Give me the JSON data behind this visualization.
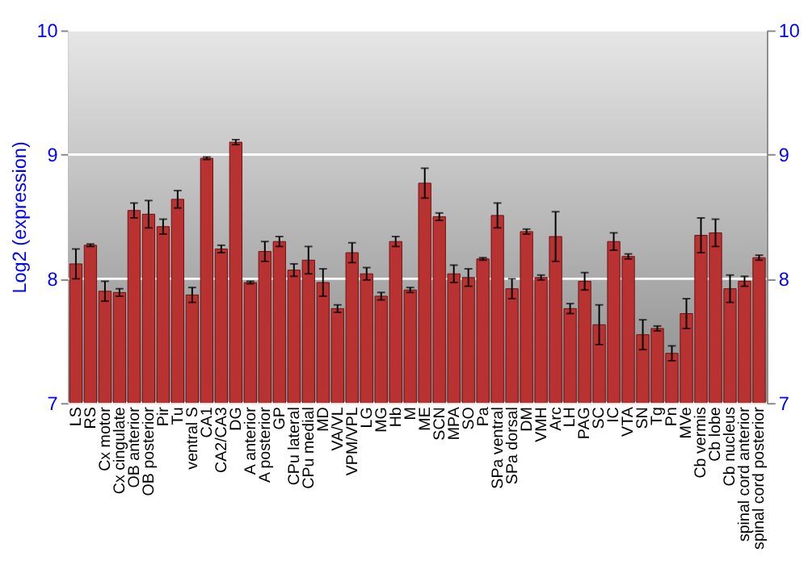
{
  "chart_data": {
    "type": "bar",
    "ylabel": "Log2 (expression)",
    "categories": [
      "LS",
      "RS",
      "Cx motor",
      "Cx cingulate",
      "OB anterior",
      "OB posterior",
      "Pir",
      "Tu",
      "ventral S",
      "CA1",
      "CA2/CA3",
      "DG",
      "A anterior",
      "A posterior",
      "GP",
      "CPu lateral",
      "CPu medial",
      "MD",
      "VA/VL",
      "VPM/VPL",
      "LG",
      "MG",
      "Hb",
      "M",
      "ME",
      "SCN",
      "MPA",
      "SO",
      "Pa",
      "SPa ventral",
      "SPa dorsal",
      "DM",
      "VMH",
      "Arc",
      "LH",
      "PAG",
      "SC",
      "IC",
      "VTA",
      "SN",
      "Tg",
      "Pn",
      "MVe",
      "Cb vermis",
      "Cb lobe",
      "Cb nucleus",
      "spinal cord anterior",
      "spinal cord posterior"
    ],
    "values": [
      8.12,
      8.27,
      7.9,
      7.89,
      8.55,
      8.52,
      8.42,
      8.64,
      7.87,
      8.97,
      8.24,
      9.1,
      7.97,
      8.22,
      8.3,
      8.07,
      8.15,
      7.97,
      7.76,
      8.21,
      8.04,
      7.86,
      8.3,
      7.91,
      8.77,
      8.5,
      8.04,
      8.01,
      8.16,
      8.51,
      7.92,
      8.38,
      8.01,
      8.34,
      7.76,
      7.98,
      7.63,
      8.3,
      8.18,
      7.55,
      7.6,
      7.4,
      7.72,
      8.35,
      8.37,
      7.92,
      7.98,
      8.17
    ],
    "errors": [
      0.12,
      0.01,
      0.08,
      0.03,
      0.06,
      0.11,
      0.06,
      0.07,
      0.06,
      0.01,
      0.03,
      0.02,
      0.01,
      0.08,
      0.04,
      0.05,
      0.11,
      0.11,
      0.03,
      0.08,
      0.05,
      0.03,
      0.04,
      0.02,
      0.12,
      0.03,
      0.07,
      0.07,
      0.01,
      0.1,
      0.08,
      0.02,
      0.02,
      0.2,
      0.04,
      0.07,
      0.16,
      0.07,
      0.02,
      0.12,
      0.02,
      0.06,
      0.12,
      0.14,
      0.11,
      0.11,
      0.04,
      0.02
    ],
    "color": "#b83232",
    "ylim": [
      7,
      10
    ],
    "yticks": [
      7,
      8,
      9,
      10
    ],
    "y2lim": [
      7,
      10
    ],
    "y2ticks": [
      7,
      8,
      9,
      10
    ],
    "grid": "y"
  }
}
